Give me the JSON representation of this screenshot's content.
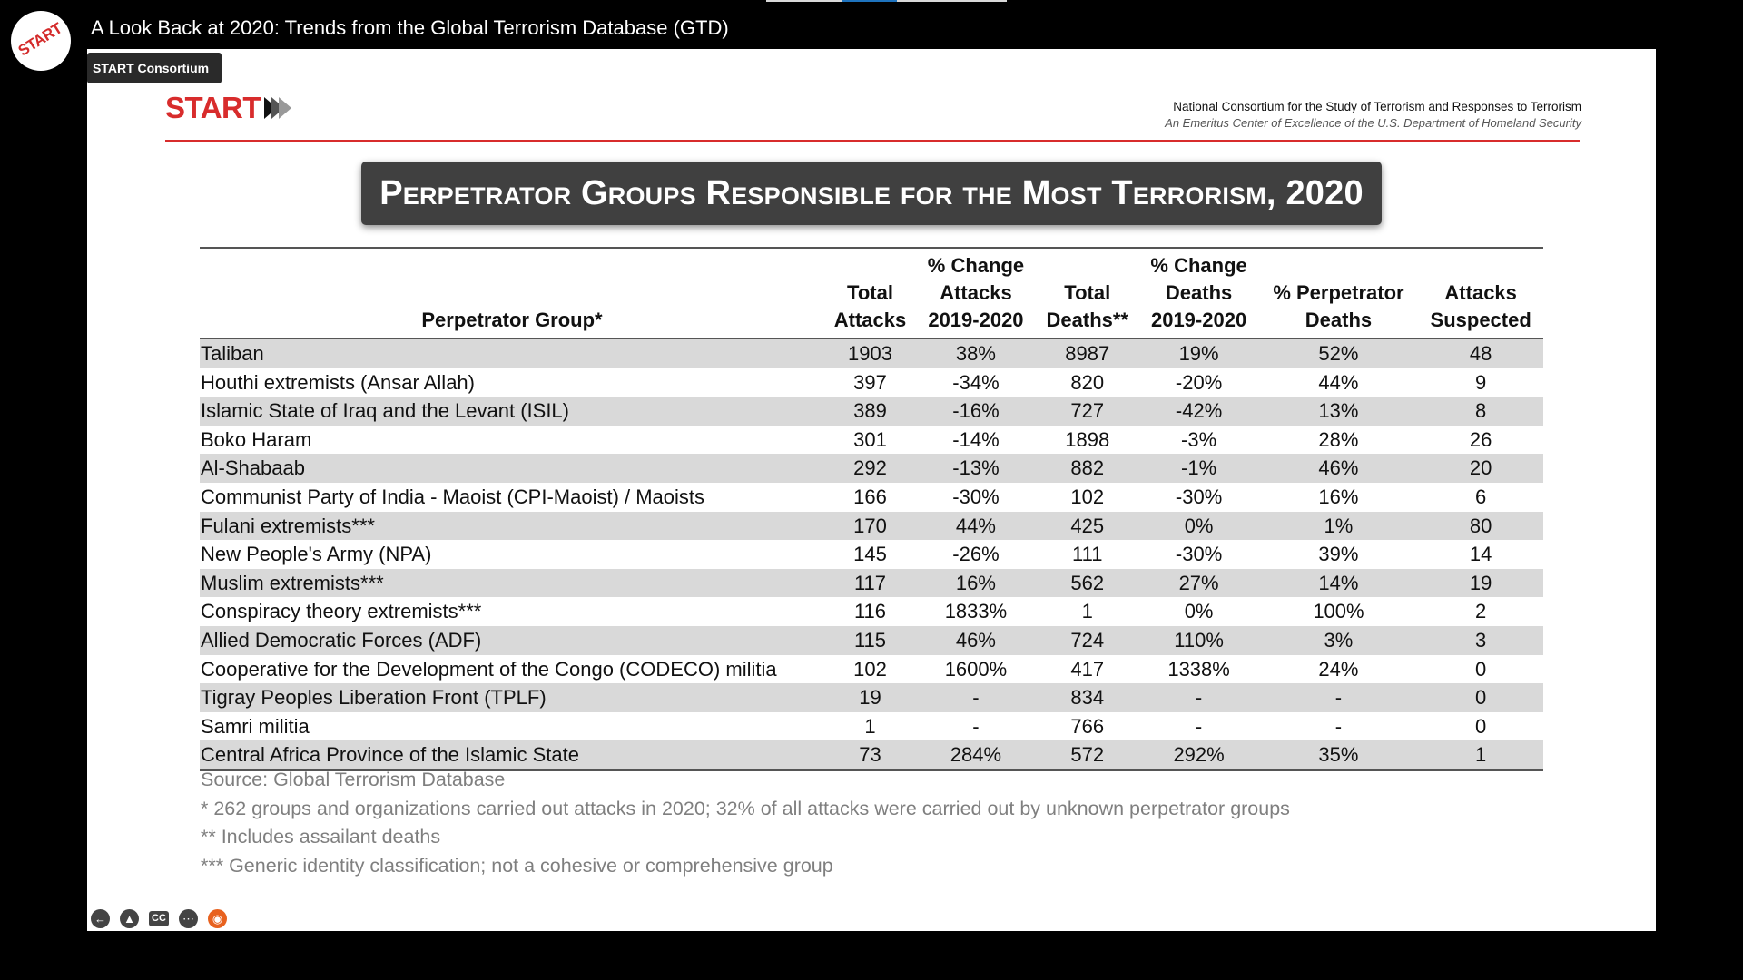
{
  "video": {
    "title": "A Look Back at 2020: Trends from the Global Terrorism Database (GTD)",
    "channel_chip": "START Consortium",
    "channel_logo_text": "START"
  },
  "slide": {
    "logo_text": "START",
    "org_name": "National Consortium for the Study of Terrorism and Responses to Terrorism",
    "org_subtitle": "An Emeritus Center of Excellence of the U.S. Department of Homeland Security",
    "title": "Perpetrator Groups Responsible for the Most Terrorism, 2020",
    "accent_color": "#d82c2c"
  },
  "table": {
    "headers": {
      "group": "Perpetrator Group*",
      "total_attacks_1": "Total",
      "total_attacks_2": "Attacks",
      "pct_attacks_1": "% Change",
      "pct_attacks_2": "Attacks",
      "pct_attacks_3": "2019-2020",
      "total_deaths_1": "Total",
      "total_deaths_2": "Deaths**",
      "pct_deaths_1": "% Change",
      "pct_deaths_2": "Deaths",
      "pct_deaths_3": "2019-2020",
      "pct_perp_1": "% Perpetrator",
      "pct_perp_2": "Deaths",
      "suspected_1": "Attacks",
      "suspected_2": "Suspected"
    },
    "rows": [
      {
        "group": "Taliban",
        "attacks": "1903",
        "pct_attacks": "38%",
        "deaths": "8987",
        "pct_deaths": "19%",
        "pct_perp": "52%",
        "suspected": "48"
      },
      {
        "group": "Houthi extremists (Ansar Allah)",
        "attacks": "397",
        "pct_attacks": "-34%",
        "deaths": "820",
        "pct_deaths": "-20%",
        "pct_perp": "44%",
        "suspected": "9"
      },
      {
        "group": "Islamic State of Iraq and the Levant (ISIL)",
        "attacks": "389",
        "pct_attacks": "-16%",
        "deaths": "727",
        "pct_deaths": "-42%",
        "pct_perp": "13%",
        "suspected": "8"
      },
      {
        "group": "Boko Haram",
        "attacks": "301",
        "pct_attacks": "-14%",
        "deaths": "1898",
        "pct_deaths": "-3%",
        "pct_perp": "28%",
        "suspected": "26"
      },
      {
        "group": "Al-Shabaab",
        "attacks": "292",
        "pct_attacks": "-13%",
        "deaths": "882",
        "pct_deaths": "-1%",
        "pct_perp": "46%",
        "suspected": "20"
      },
      {
        "group": "Communist Party of India - Maoist (CPI-Maoist) / Maoists",
        "attacks": "166",
        "pct_attacks": "-30%",
        "deaths": "102",
        "pct_deaths": "-30%",
        "pct_perp": "16%",
        "suspected": "6"
      },
      {
        "group": "Fulani extremists***",
        "attacks": "170",
        "pct_attacks": "44%",
        "deaths": "425",
        "pct_deaths": "0%",
        "pct_perp": "1%",
        "suspected": "80"
      },
      {
        "group": "New People's Army (NPA)",
        "attacks": "145",
        "pct_attacks": "-26%",
        "deaths": "111",
        "pct_deaths": "-30%",
        "pct_perp": "39%",
        "suspected": "14"
      },
      {
        "group": "Muslim extremists***",
        "attacks": "117",
        "pct_attacks": "16%",
        "deaths": "562",
        "pct_deaths": "27%",
        "pct_perp": "14%",
        "suspected": "19"
      },
      {
        "group": "Conspiracy theory extremists***",
        "attacks": "116",
        "pct_attacks": "1833%",
        "deaths": "1",
        "pct_deaths": "0%",
        "pct_perp": "100%",
        "suspected": "2"
      },
      {
        "group": "Allied Democratic Forces (ADF)",
        "attacks": "115",
        "pct_attacks": "46%",
        "deaths": "724",
        "pct_deaths": "110%",
        "pct_perp": "3%",
        "suspected": "3"
      },
      {
        "group": "Cooperative for the Development of the Congo (CODECO) militia",
        "attacks": "102",
        "pct_attacks": "1600%",
        "deaths": "417",
        "pct_deaths": "1338%",
        "pct_perp": "24%",
        "suspected": "0"
      },
      {
        "group": "Tigray Peoples Liberation Front (TPLF)",
        "attacks": "19",
        "pct_attacks": "-",
        "deaths": "834",
        "pct_deaths": "-",
        "pct_perp": "-",
        "suspected": "0"
      },
      {
        "group": "Samri militia",
        "attacks": "1",
        "pct_attacks": "-",
        "deaths": "766",
        "pct_deaths": "-",
        "pct_perp": "-",
        "suspected": "0"
      },
      {
        "group": "Central Africa Province of the Islamic State",
        "attacks": "73",
        "pct_attacks": "284%",
        "deaths": "572",
        "pct_deaths": "292%",
        "pct_perp": "35%",
        "suspected": "1"
      }
    ]
  },
  "notes": {
    "source": "Source: Global Terrorism Database",
    "note1": "* 262 groups and organizations carried out attacks in 2020; 32% of all attacks were carried out by unknown perpetrator groups",
    "note2": "** Includes assailant deaths",
    "note3": "*** Generic identity classification; not a cohesive or comprehensive group"
  },
  "controls": {
    "back_icon": "back-arrow-icon",
    "upload_icon": "upload-icon",
    "cc_label": "CC",
    "more_icon": "more-icon",
    "logo_icon": "channel-logo-icon"
  }
}
